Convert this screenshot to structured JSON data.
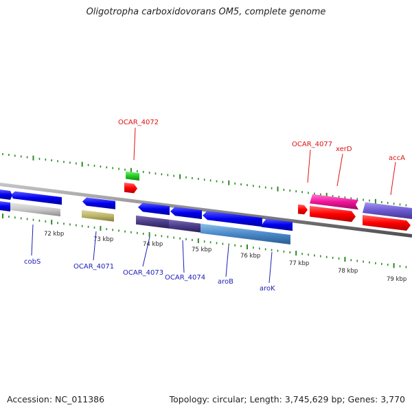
{
  "title": "Oligotropha carboxidovorans OM5, complete genome",
  "footer": {
    "accession": "Accession: NC_011386",
    "topology": "Topology: circular; Length: 3,745,629 bp; Genes: 3,770"
  },
  "colors": {
    "backbone": "#8a8a8a",
    "ruler_tick": "#2a8a1e",
    "label_blue": "#1a1ab8",
    "label_red": "#e01010"
  },
  "ruler_labels": [
    "72 kbp",
    "73 kbp",
    "74 kbp",
    "75 kbp",
    "76 kbp",
    "77 kbp",
    "78 kbp",
    "79 kbp"
  ],
  "genes": [
    {
      "label": "cobS",
      "color": "#0000ee",
      "label_color": "blue"
    },
    {
      "label": "OCAR_4071",
      "color": "#0000ee",
      "label_color": "blue"
    },
    {
      "label": "OCAR_4072",
      "color": "#ff0000",
      "label_color": "red"
    },
    {
      "label": "OCAR_4073",
      "color": "#0000ee",
      "label_color": "blue"
    },
    {
      "label": "OCAR_4074",
      "color": "#0000ee",
      "label_color": "blue"
    },
    {
      "label": "aroB",
      "color": "#0000ee",
      "label_color": "blue"
    },
    {
      "label": "aroK",
      "color": "#0000ee",
      "label_color": "blue"
    },
    {
      "label": "OCAR_4077",
      "color": "#ff0000",
      "label_color": "red"
    },
    {
      "label": "xerD",
      "color": "#ff0000",
      "label_color": "red"
    },
    {
      "label": "accA",
      "color": "#ff0000",
      "label_color": "red"
    }
  ]
}
